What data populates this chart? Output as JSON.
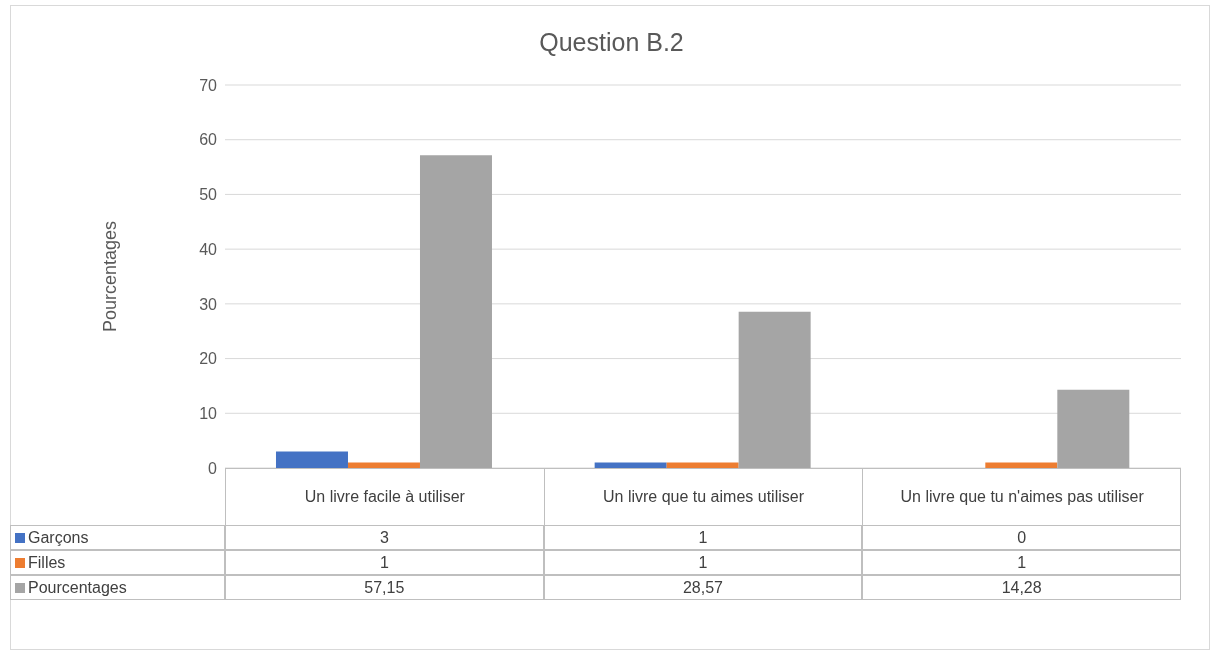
{
  "chart_data": {
    "type": "bar",
    "title": "Question B.2",
    "ylabel": "Pourcentages",
    "categories": [
      "Un livre facile à utiliser",
      "Un livre que tu aimes utiliser",
      "Un livre que tu n'aimes pas utiliser"
    ],
    "series": [
      {
        "name": "Garçons",
        "color": "#4472c4",
        "values": [
          3,
          1,
          0
        ],
        "value_labels": [
          "3",
          "1",
          "0"
        ]
      },
      {
        "name": "Filles",
        "color": "#ed7d31",
        "values": [
          1,
          1,
          1
        ],
        "value_labels": [
          "1",
          "1",
          "1"
        ]
      },
      {
        "name": "Pourcentages",
        "color": "#a5a5a5",
        "values": [
          57.15,
          28.57,
          14.28
        ],
        "value_labels": [
          "57,15",
          "28,57",
          "14,28"
        ]
      }
    ],
    "ylim": [
      0,
      70
    ],
    "yticks": [
      0,
      10,
      20,
      30,
      40,
      50,
      60,
      70
    ],
    "grid": "y",
    "legend": "bottom"
  }
}
